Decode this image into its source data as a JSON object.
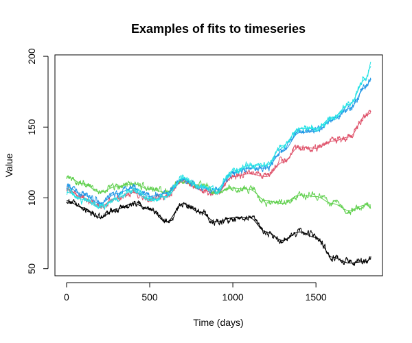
{
  "chart_data": {
    "type": "line",
    "title": "Examples of fits to timeseries",
    "xlabel": "Time (days)",
    "ylabel": "Value",
    "xlim": [
      -70,
      1900
    ],
    "ylim": [
      45,
      201
    ],
    "x_ticks": [
      0,
      500,
      1000,
      1500
    ],
    "y_ticks": [
      50,
      100,
      150,
      200
    ],
    "grid": false,
    "legend": "none",
    "series": [
      {
        "color": "#000000",
        "x": [
          0,
          100,
          200,
          300,
          400,
          500,
          600,
          700,
          800,
          900,
          1000,
          1100,
          1200,
          1300,
          1400,
          1500,
          1600,
          1700,
          1800,
          1830
        ],
        "values": [
          98,
          93,
          86,
          92,
          96,
          92,
          83,
          96,
          90,
          83,
          86,
          86,
          76,
          70,
          76,
          72,
          58,
          54,
          55,
          57
        ]
      },
      {
        "color": "#DF536B",
        "x": [
          0,
          100,
          200,
          300,
          400,
          500,
          600,
          700,
          800,
          900,
          1000,
          1100,
          1200,
          1300,
          1400,
          1500,
          1600,
          1700,
          1800,
          1830
        ],
        "values": [
          106,
          100,
          94,
          100,
          104,
          99,
          101,
          112,
          106,
          103,
          115,
          117,
          115,
          125,
          136,
          135,
          140,
          143,
          158,
          160
        ]
      },
      {
        "color": "#61D04F",
        "x": [
          0,
          100,
          200,
          300,
          400,
          500,
          600,
          700,
          800,
          900,
          1000,
          1100,
          1200,
          1300,
          1400,
          1500,
          1600,
          1700,
          1800,
          1830
        ],
        "values": [
          115,
          110,
          104,
          108,
          110,
          106,
          104,
          113,
          109,
          104,
          107,
          106,
          98,
          96,
          102,
          101,
          96,
          91,
          95,
          95
        ]
      },
      {
        "color": "#2297E6",
        "x": [
          0,
          100,
          200,
          300,
          400,
          500,
          600,
          700,
          800,
          900,
          1000,
          1100,
          1200,
          1300,
          1400,
          1500,
          1600,
          1700,
          1800,
          1830
        ],
        "values": [
          108,
          102,
          96,
          103,
          107,
          101,
          103,
          114,
          108,
          106,
          118,
          121,
          121,
          133,
          146,
          147,
          155,
          163,
          178,
          184
        ]
      },
      {
        "color": "#28E2E5",
        "x": [
          0,
          100,
          200,
          300,
          400,
          500,
          600,
          700,
          800,
          900,
          1000,
          1100,
          1200,
          1300,
          1400,
          1500,
          1600,
          1700,
          1800,
          1830
        ],
        "values": [
          104,
          99,
          93,
          100,
          105,
          98,
          101,
          114,
          108,
          106,
          119,
          123,
          123,
          137,
          149,
          149,
          157,
          166,
          184,
          193
        ]
      }
    ]
  }
}
